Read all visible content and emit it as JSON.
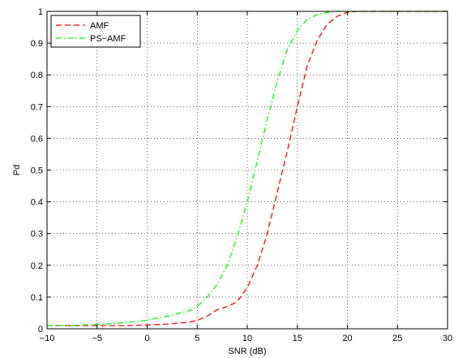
{
  "chart_data": {
    "type": "line",
    "title": "",
    "xlabel": "SNR (dB)",
    "ylabel": "Pd",
    "xlim": [
      -10,
      30
    ],
    "ylim": [
      0,
      1
    ],
    "xticks": [
      -10,
      -5,
      0,
      5,
      10,
      15,
      20,
      25,
      30
    ],
    "xtick_labels": [
      "−10",
      "−5",
      "0",
      "5",
      "10",
      "15",
      "20",
      "25",
      "30"
    ],
    "yticks": [
      0,
      0.1,
      0.2,
      0.3,
      0.4,
      0.5,
      0.6,
      0.7,
      0.8,
      0.9,
      1
    ],
    "ytick_labels": [
      "0",
      "0.1",
      "0.2",
      "0.3",
      "0.4",
      "0.5",
      "0.6",
      "0.7",
      "0.8",
      "0.9",
      "1"
    ],
    "grid": true,
    "legend_position": "top-left",
    "series": [
      {
        "name": "AMF",
        "color": "#ff0000",
        "dash": "dashed",
        "x": [
          -10,
          -8,
          -6,
          -4,
          -2,
          0,
          2,
          4,
          5,
          6,
          7,
          8,
          9,
          10,
          11,
          12,
          13,
          14,
          15,
          16,
          17,
          18,
          19,
          20,
          21,
          22,
          24,
          26,
          28,
          30
        ],
        "y": [
          0.01,
          0.01,
          0.01,
          0.01,
          0.01,
          0.012,
          0.015,
          0.02,
          0.026,
          0.04,
          0.06,
          0.07,
          0.085,
          0.13,
          0.2,
          0.3,
          0.43,
          0.56,
          0.7,
          0.83,
          0.91,
          0.96,
          0.985,
          0.997,
          1.0,
          1.0,
          1.0,
          1.0,
          1.0,
          1.0
        ]
      },
      {
        "name": "PS−AMF",
        "color": "#00ff00",
        "dash": "dash-dot",
        "x": [
          -10,
          -8,
          -6,
          -4,
          -2,
          0,
          2,
          4,
          5,
          6,
          7,
          8,
          9,
          10,
          11,
          12,
          13,
          14,
          15,
          16,
          17,
          18,
          19,
          20,
          22,
          24,
          26,
          28,
          30
        ],
        "y": [
          0.01,
          0.01,
          0.012,
          0.015,
          0.02,
          0.027,
          0.04,
          0.055,
          0.07,
          0.1,
          0.14,
          0.2,
          0.29,
          0.4,
          0.53,
          0.66,
          0.78,
          0.88,
          0.94,
          0.975,
          0.99,
          0.997,
          1.0,
          1.0,
          1.0,
          1.0,
          1.0,
          1.0,
          1.0
        ]
      }
    ]
  }
}
